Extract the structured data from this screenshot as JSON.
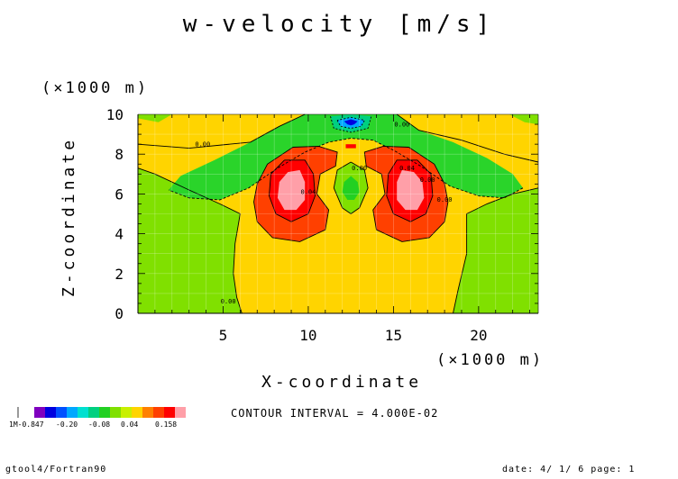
{
  "chart_data": {
    "type": "heatmap",
    "title": "w-velocity [m/s]",
    "xlabel": "X-coordinate",
    "ylabel": "Z-coordinate",
    "x_unit_label": "(×1000 m)",
    "y_unit_label": "(×1000 m)",
    "xlim": [
      0,
      23.5
    ],
    "ylim": [
      0,
      10
    ],
    "x_ticks": [
      5,
      10,
      15,
      20
    ],
    "y_ticks": [
      0,
      2,
      4,
      6,
      8,
      10
    ],
    "contour_interval_text": "CONTOUR INTERVAL = 4.000E-02",
    "colorbar": {
      "tick_labels": [
        "1M-0.847",
        "-0.20",
        "-0.08",
        "0.04",
        "0.158"
      ],
      "colors": [
        "#7f00bf",
        "#0000e0",
        "#0050ff",
        "#00a8ff",
        "#00e0d0",
        "#00d080",
        "#22d022",
        "#80e000",
        "#c8f000",
        "#ffd400",
        "#ff8000",
        "#ff4000",
        "#ff0000",
        "#ff9fa8"
      ]
    },
    "regions": [
      {
        "name": "left flank (x 0–6.5, z 0–6)",
        "value_range": "0.00 to 0.04"
      },
      {
        "name": "central updraft column (x 6–18.5, z 0–8.5)",
        "value_range": "0.00 to 0.04"
      },
      {
        "name": "upper band (z 7.5–10)",
        "value_range": "0.00 to 0.04"
      },
      {
        "name": "downdraft arch (z 6–9)",
        "value_range": "-0.08 to 0.00"
      },
      {
        "name": "left updraft core (centre x 9, z 6)",
        "value_range": "0.04 to 0.158"
      },
      {
        "name": "right updraft core (centre x 16, z 6)",
        "value_range": "0.04 to 0.158"
      },
      {
        "name": "central downdraft (x 12.5, z 6.2)",
        "value_range": "-0.08 to 0.00"
      },
      {
        "name": "top minimum (x 12.5, z 9.6)",
        "value_range": "-0.847 to -0.20"
      }
    ],
    "contour_labels": [
      {
        "text": "0.00",
        "x": 3.8,
        "z": 8.4
      },
      {
        "text": "0.00",
        "x": 15.5,
        "z": 9.4
      },
      {
        "text": "0.00",
        "x": 5.3,
        "z": 0.5
      },
      {
        "text": "0.00",
        "x": 18.0,
        "z": 5.6
      },
      {
        "text": "0.00",
        "x": 17.0,
        "z": 6.6
      },
      {
        "text": "0.00",
        "x": 13.0,
        "z": 7.2
      },
      {
        "text": "0.04",
        "x": 10.0,
        "z": 6.0
      },
      {
        "text": "0.04",
        "x": 15.8,
        "z": 7.2
      }
    ]
  },
  "footer_left": "gtool4/Fortran90",
  "footer_right": "date: 4/ 1/ 6 page: 1"
}
